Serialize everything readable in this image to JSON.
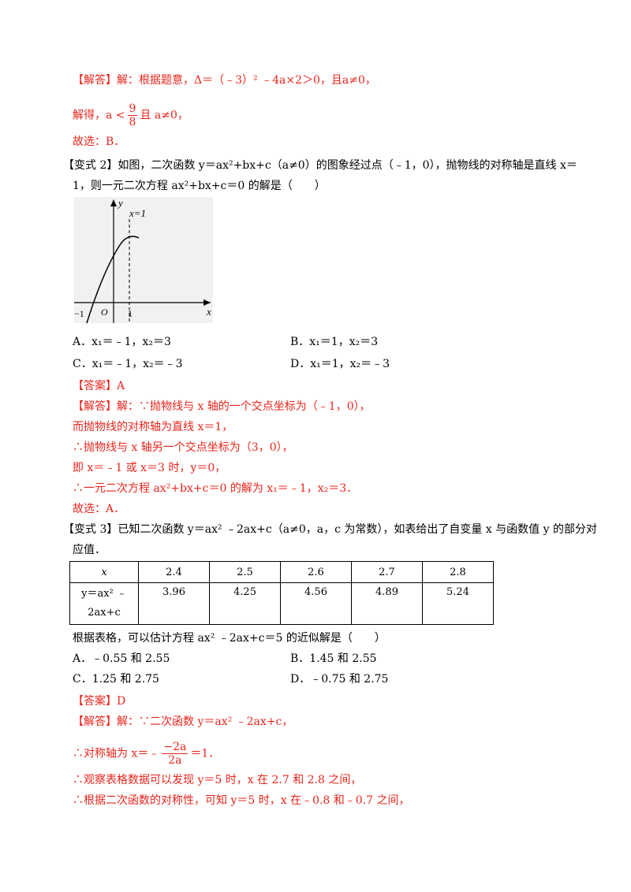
{
  "p1_l1": "【解答】解：根据题意，Δ＝（﹣3）² ﹣4a×2＞0，且a≠0，",
  "p1_l2a": "解得，a <",
  "p1_num": "9",
  "p1_den": "8",
  "p1_l2b": "且 a≠0，",
  "p1_l3": "故选：B．",
  "v2_l1": "【变式 2】如图，二次函数 y＝ax²+bx+c（a≠0）的图象经过点（﹣1，0），抛物线的对称轴是直线 x＝",
  "v2_l2": "1，则一元二次方程 ax²+bx+c＝0 的解是（　　）",
  "graph": {
    "y_label": "y",
    "x_label": "x",
    "axis_eq": "x=1",
    "o_label": "O",
    "neg_one": "−1",
    "one": "1"
  },
  "v2_opts": [
    "A．x₁＝﹣1，x₂＝3",
    "B．x₁＝1，x₂＝3",
    "C．x₁＝﹣1，x₂＝﹣3",
    "D．x₁＝1，x₂＝﹣3"
  ],
  "v2_ans": "【答案】A",
  "v2_sol": [
    "【解答】解：∵抛物线与 x 轴的一个交点坐标为（﹣1，0），",
    "而抛物线的对称轴为直线 x＝1，",
    "∴抛物线与 x 轴另一个交点坐标为（3，0），",
    "即 x＝﹣1 或 x＝3 时，y＝0，",
    "∴一元二次方程 ax²+bx+c＝0 的解为 x₁＝﹣1，x₂＝3．",
    "故选：A．"
  ],
  "v3_l1": "【变式 3】已知二次函数 y＝ax² ﹣2ax+c（a≠0，a，c 为常数），如表给出了自变量 x 与函数值 y 的部分对",
  "v3_l2": "应值．",
  "table": {
    "h0": "x",
    "xs": [
      "2.4",
      "2.5",
      "2.6",
      "2.7",
      "2.8"
    ],
    "r0a": "y＝ax² ﹣",
    "r0b": "2ax+c",
    "ys": [
      "3.96",
      "4.25",
      "4.56",
      "4.89",
      "5.24"
    ]
  },
  "v3_q": "根据表格，可以估计方程 ax² ﹣2ax+c＝5 的近似解是（　　）",
  "v3_opts": [
    "A．﹣0.55 和 2.55",
    "B．1.45 和 2.55",
    "C．1.25 和 2.75",
    "D．﹣0.75 和 2.75"
  ],
  "v3_ans": "【答案】D",
  "v3_sol1": "【解答】解：∵二次函数 y＝ax² ﹣2ax+c，",
  "v3_sol2a": "∴对称轴为 x＝﹣",
  "v3_num": "−2a",
  "v3_den": "2a",
  "v3_sol2b": "＝1．",
  "v3_sol3": "∴观察表格数据可以发现 y＝5 时，x 在 2.7 和 2.8 之间，",
  "v3_sol4": "∴根据二次函数的对称性，可知 y＝5 时，x 在﹣0.8 和﹣0.7 之间，"
}
